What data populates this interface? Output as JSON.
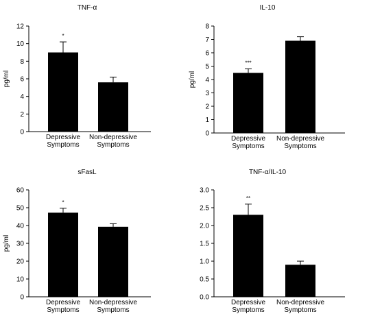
{
  "chart_data": [
    {
      "type": "bar",
      "title": "TNF-α",
      "ylabel": "pg/ml",
      "xlabel": "",
      "categories": [
        [
          "Depressive",
          "Symptoms"
        ],
        [
          "Non-depressive",
          "Symptoms"
        ]
      ],
      "values": [
        9.0,
        5.6
      ],
      "errors": [
        1.2,
        0.6
      ],
      "annotations": [
        "*",
        ""
      ],
      "ylim": [
        0,
        12
      ],
      "yticks": [
        "0",
        "2",
        "4",
        "6",
        "8",
        "10",
        "12"
      ],
      "grid": false,
      "bar_color": "#000000"
    },
    {
      "type": "bar",
      "title": "IL-10",
      "ylabel": "pg/ml",
      "xlabel": "",
      "categories": [
        [
          "Depressive",
          "Symptoms"
        ],
        [
          "Non-depressive",
          "Symptoms"
        ]
      ],
      "values": [
        4.5,
        6.9
      ],
      "errors": [
        0.3,
        0.3
      ],
      "annotations": [
        "***",
        ""
      ],
      "ylim": [
        0,
        8
      ],
      "yticks": [
        "0",
        "1",
        "2",
        "3",
        "4",
        "5",
        "6",
        "7",
        "8"
      ],
      "grid": false,
      "bar_color": "#000000"
    },
    {
      "type": "bar",
      "title": "sFasL",
      "ylabel": "pg/ml",
      "xlabel": "",
      "categories": [
        [
          "Depressive",
          "Symptoms"
        ],
        [
          "Non-depressive",
          "Symptoms"
        ]
      ],
      "values": [
        47.2,
        39.3
      ],
      "errors": [
        2.5,
        1.7
      ],
      "annotations": [
        "*",
        ""
      ],
      "ylim": [
        0,
        60
      ],
      "yticks": [
        "0",
        "10",
        "20",
        "30",
        "40",
        "50",
        "60"
      ],
      "grid": false,
      "bar_color": "#000000"
    },
    {
      "type": "bar",
      "title": "TNF-α/IL-10",
      "ylabel": "",
      "xlabel": "",
      "categories": [
        [
          "Depressive",
          "Symptoms"
        ],
        [
          "Non-depressive",
          "Symptoms"
        ]
      ],
      "values": [
        2.3,
        0.9
      ],
      "errors": [
        0.3,
        0.1
      ],
      "annotations": [
        "**",
        ""
      ],
      "ylim": [
        0,
        3
      ],
      "yticks": [
        "0.0",
        "0.5",
        "1.0",
        "1.5",
        "2.0",
        "2.5",
        "3.0"
      ],
      "grid": false,
      "bar_color": "#000000"
    }
  ]
}
